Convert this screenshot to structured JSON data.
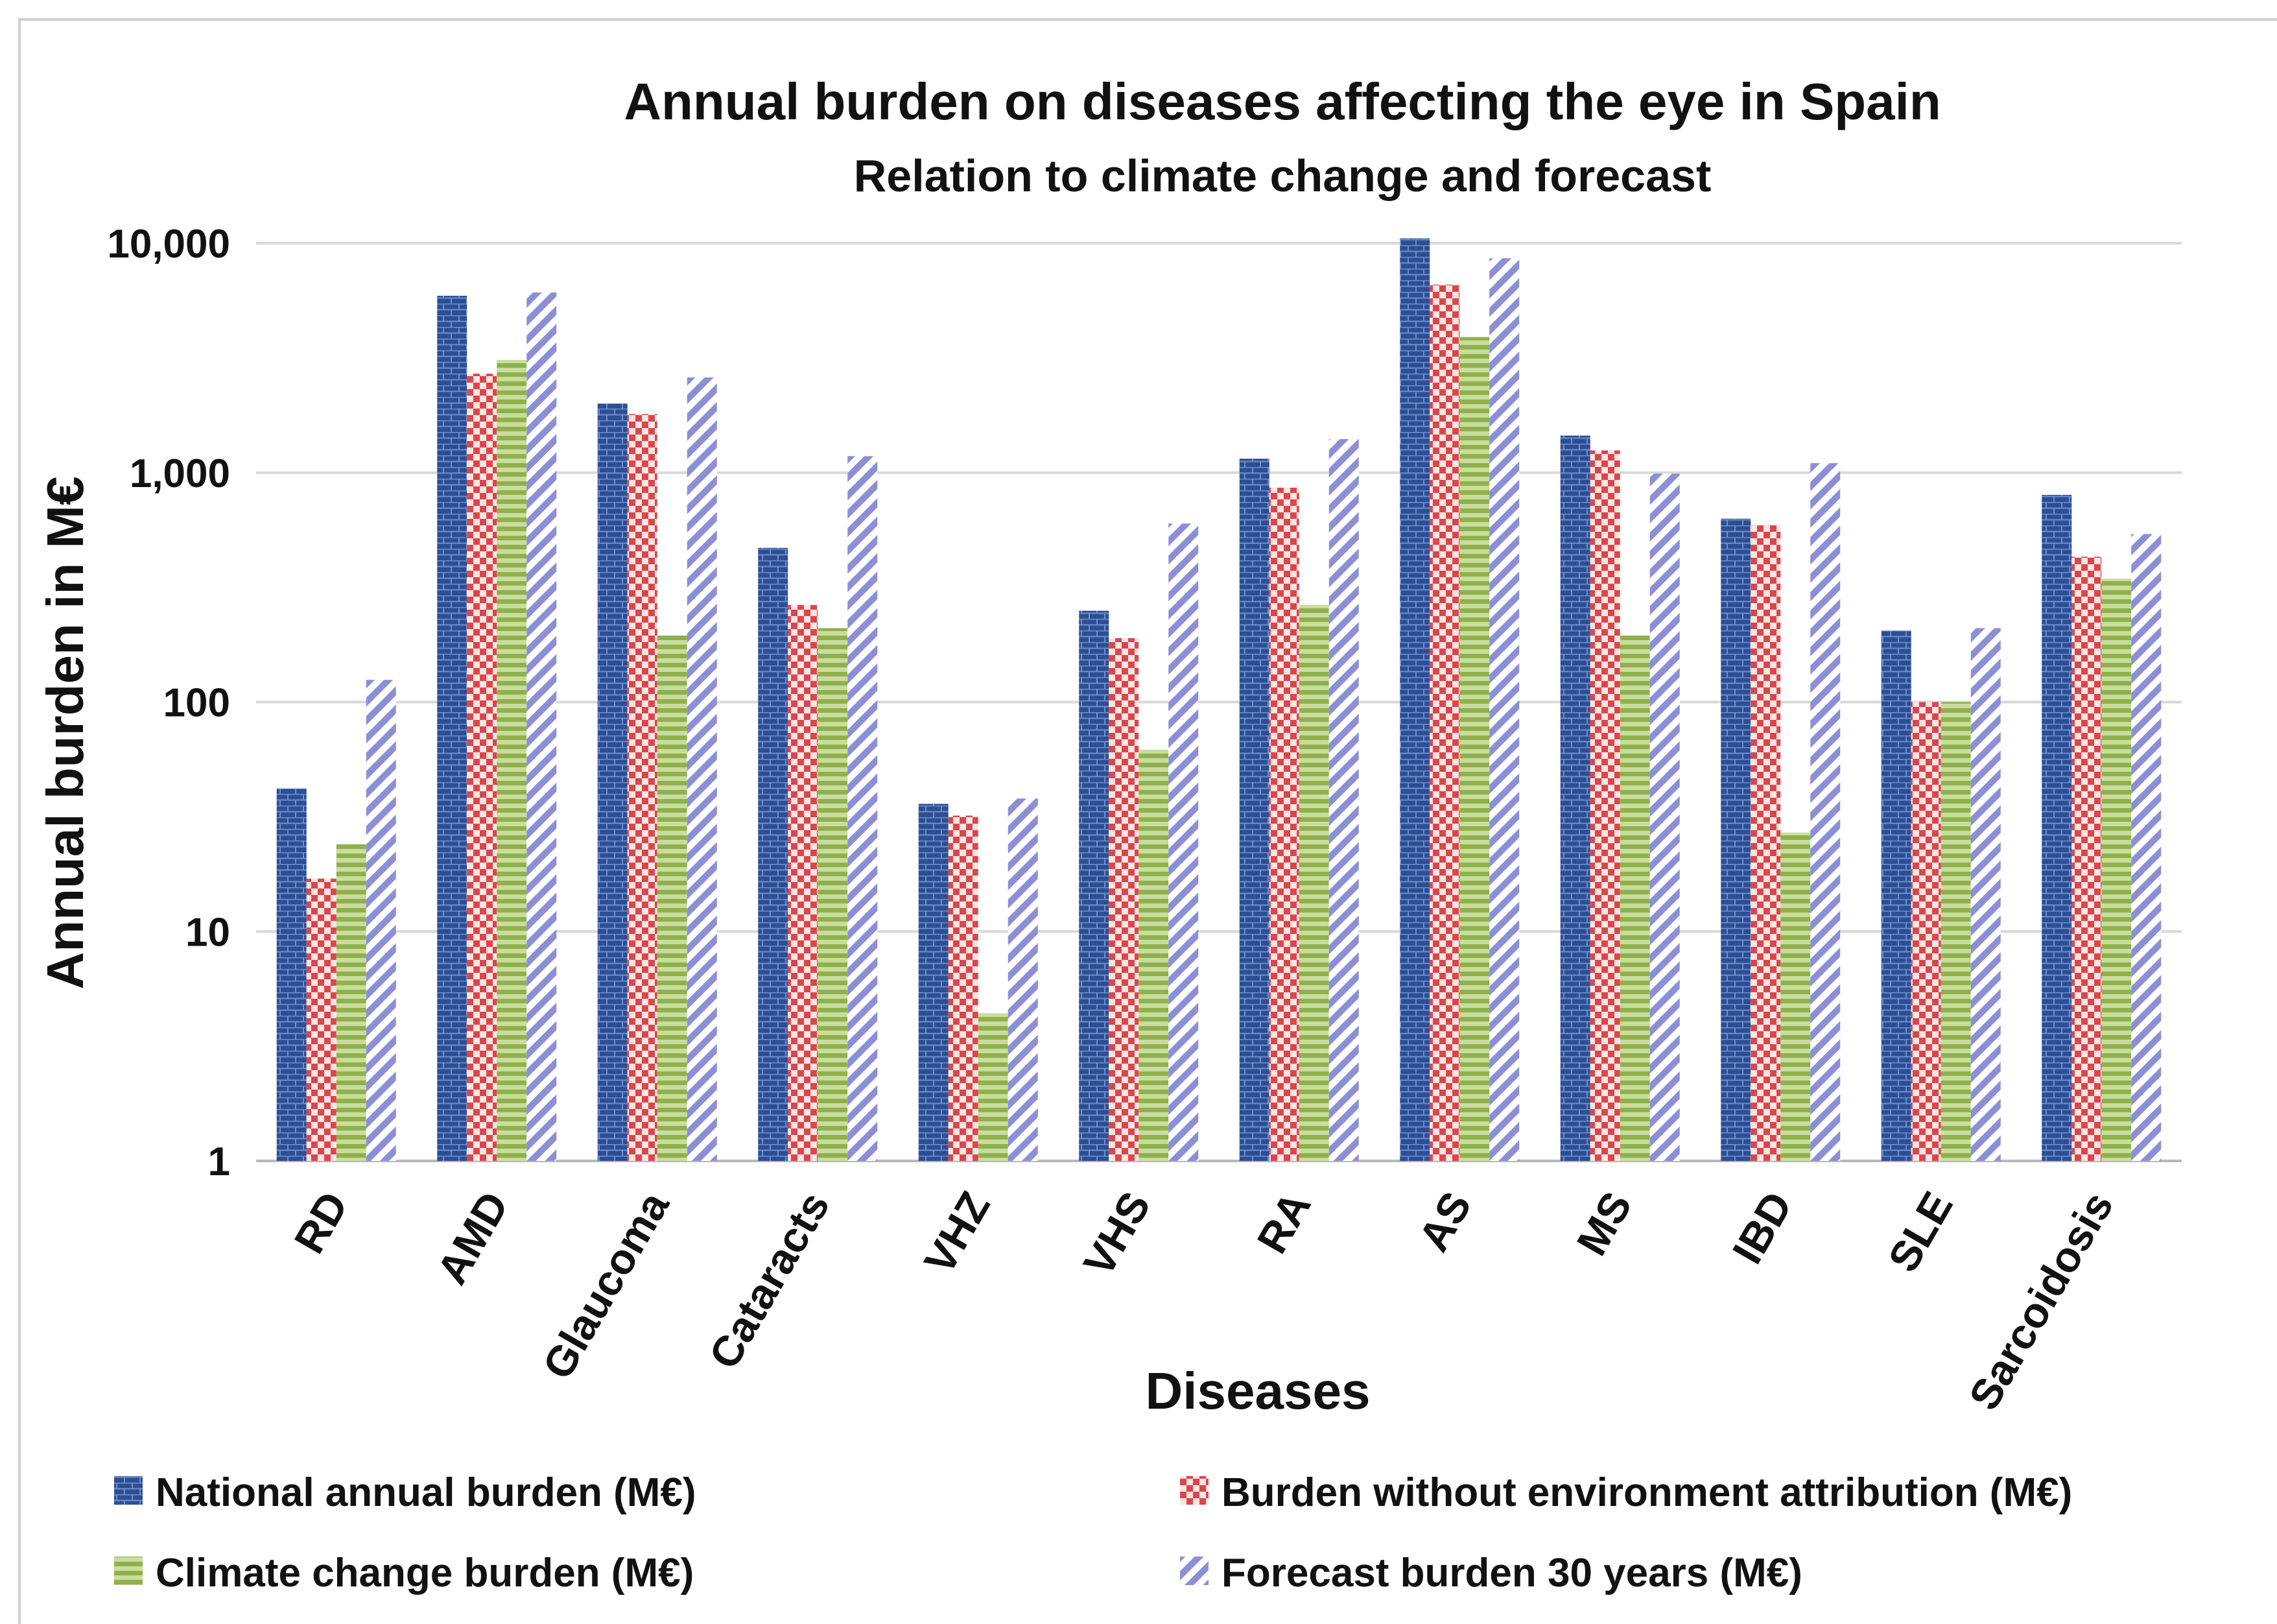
{
  "chart_data": {
    "type": "bar",
    "title": "Annual burden on diseases affecting the eye in Spain",
    "subtitle": "Relation to climate change and forecast",
    "xlabel": "Diseases",
    "ylabel": "Annual burden in M€",
    "yscale": "log",
    "ylim": [
      1,
      10000
    ],
    "yticks": [
      1,
      10,
      100,
      1000,
      10000
    ],
    "ytick_labels": [
      "1",
      "10",
      "100",
      "1,000",
      "10,000"
    ],
    "categories": [
      "RD",
      "AMD",
      "Glaucoma",
      "Cataracts",
      "VHZ",
      "VHS",
      "RA",
      "AS",
      "MS",
      "IBD",
      "SLE",
      "Sarcoidosis"
    ],
    "series": [
      {
        "name": "National annual burden (M€)",
        "color": "#2d4e92",
        "values": [
          42,
          5900,
          2000,
          470,
          36,
          250,
          1150,
          10500,
          1450,
          630,
          205,
          800
        ]
      },
      {
        "name": "Burden without environment attribution (M€)",
        "color": "#d9474a",
        "values": [
          17,
          2700,
          1800,
          265,
          32,
          190,
          860,
          6600,
          1250,
          590,
          100,
          430
        ]
      },
      {
        "name": "Climate change burden (M€)",
        "color": "#9dbb57",
        "values": [
          24,
          3100,
          195,
          210,
          4.4,
          62,
          265,
          3900,
          195,
          27,
          100,
          345
        ]
      },
      {
        "name": "Forecast burden 30 years (M€)",
        "color": "#8d8fd6",
        "values": [
          125,
          6100,
          2600,
          1180,
          38,
          600,
          1400,
          8600,
          990,
          1100,
          210,
          540
        ]
      }
    ],
    "legend_position": "bottom"
  }
}
